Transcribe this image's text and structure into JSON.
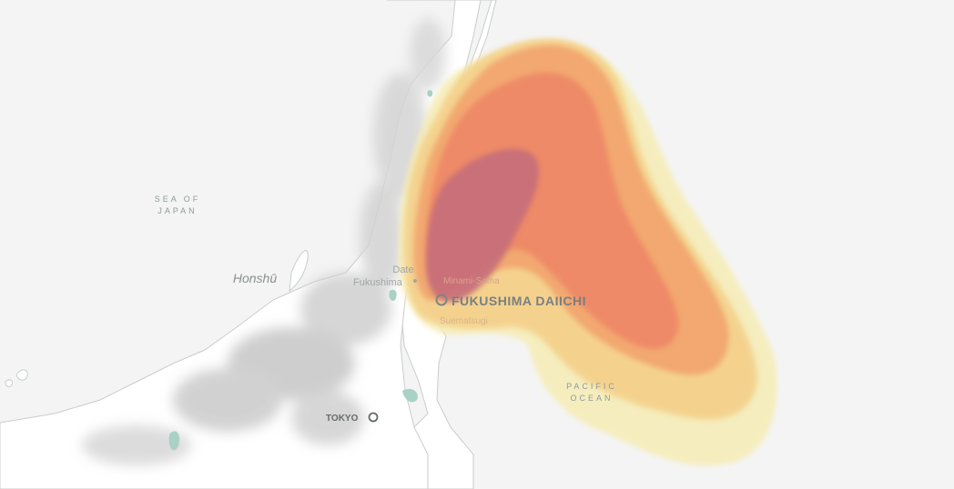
{
  "map": {
    "seas": {
      "sea_of_japan": [
        "SEA OF",
        "JAPAN"
      ],
      "pacific_ocean": [
        "PACIFIC",
        "OCEAN"
      ]
    },
    "islands": {
      "honshu": "Honshū"
    },
    "cities": {
      "date": "Date",
      "fukushima": "Fukushima",
      "minami_soma": "Minami-Soma",
      "suematsugi": "Suematsugi",
      "tokyo": "TOKYO"
    },
    "site": {
      "name": "FUKUSHIMA DAIICHI"
    },
    "colors": {
      "background": "#f4f4f4",
      "land": "#ffffff",
      "terrain": "#c8c8c8",
      "coast": "#c9cdcd",
      "water": "#a9d1c5",
      "plume_outer": "#f6ecb4",
      "plume_light": "#f4d08a",
      "plume_mid": "#f2a56e",
      "plume_high": "#ee8566",
      "plume_core": "#c76e7a"
    }
  }
}
